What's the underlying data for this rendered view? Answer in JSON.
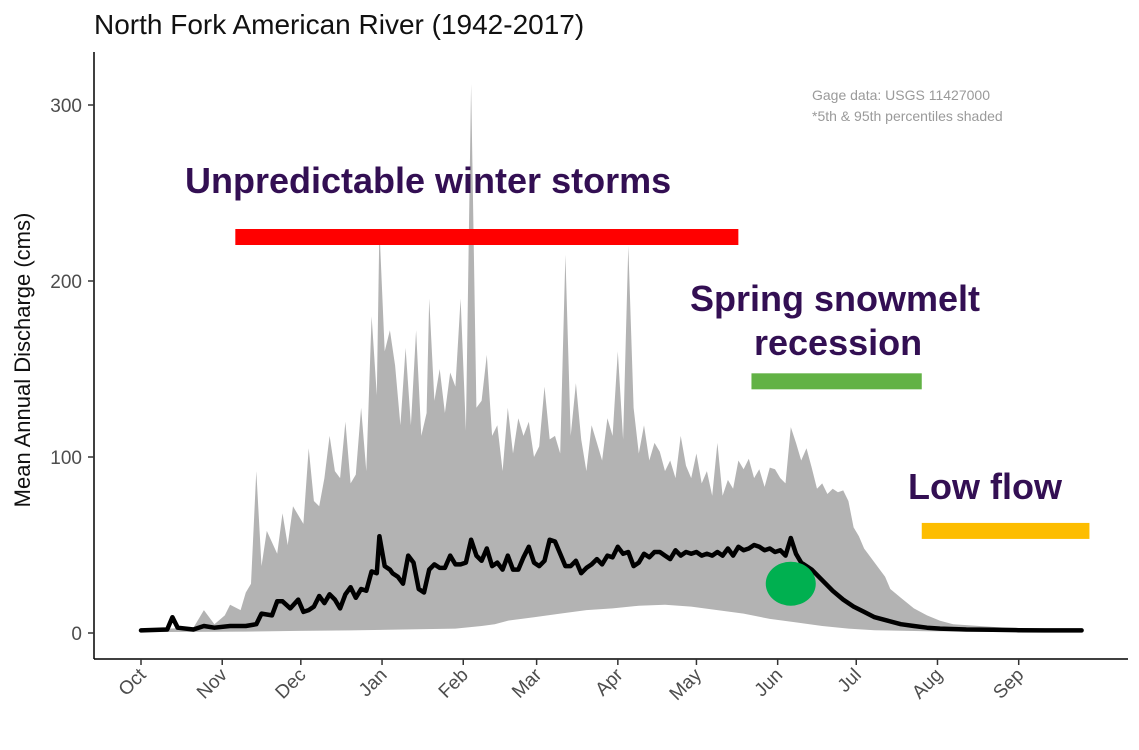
{
  "chart_data": {
    "type": "line",
    "title": "North Fork American River (1942-2017)",
    "ylabel": "Mean Annual Discharge (cms)",
    "xlabel": "",
    "ylim": [
      0,
      330
    ],
    "yticks": [
      0,
      100,
      200,
      300
    ],
    "x_unit": "day of water year (Oct 1 = 0)",
    "xticks": [
      {
        "label": "Oct",
        "day": 0
      },
      {
        "label": "Nov",
        "day": 31
      },
      {
        "label": "Dec",
        "day": 61
      },
      {
        "label": "Jan",
        "day": 92
      },
      {
        "label": "Feb",
        "day": 123
      },
      {
        "label": "Mar",
        "day": 151
      },
      {
        "label": "Apr",
        "day": 182
      },
      {
        "label": "May",
        "day": 212
      },
      {
        "label": "Jun",
        "day": 243
      },
      {
        "label": "Jul",
        "day": 273
      },
      {
        "label": "Aug",
        "day": 304
      },
      {
        "label": "Sep",
        "day": 335
      }
    ],
    "series": [
      {
        "role": "mean",
        "color": "#000000",
        "points": [
          [
            0,
            1.5
          ],
          [
            10,
            2
          ],
          [
            12,
            9
          ],
          [
            14,
            3
          ],
          [
            20,
            2
          ],
          [
            24,
            4
          ],
          [
            28,
            3
          ],
          [
            34,
            4
          ],
          [
            40,
            4
          ],
          [
            44,
            5
          ],
          [
            46,
            11
          ],
          [
            50,
            10
          ],
          [
            52,
            18
          ],
          [
            54,
            18
          ],
          [
            57,
            14
          ],
          [
            60,
            19
          ],
          [
            62,
            12
          ],
          [
            64,
            13
          ],
          [
            66,
            15
          ],
          [
            68,
            21
          ],
          [
            70,
            17
          ],
          [
            72,
            22
          ],
          [
            74,
            19
          ],
          [
            76,
            14
          ],
          [
            78,
            22
          ],
          [
            80,
            26
          ],
          [
            82,
            20
          ],
          [
            84,
            25
          ],
          [
            86,
            24
          ],
          [
            88,
            35
          ],
          [
            90,
            34
          ],
          [
            91,
            55
          ],
          [
            93,
            38
          ],
          [
            95,
            36
          ],
          [
            96,
            34
          ],
          [
            98,
            32
          ],
          [
            100,
            28
          ],
          [
            102,
            44
          ],
          [
            104,
            40
          ],
          [
            106,
            25
          ],
          [
            108,
            23
          ],
          [
            110,
            36
          ],
          [
            112,
            39
          ],
          [
            114,
            37
          ],
          [
            116,
            37
          ],
          [
            118,
            44
          ],
          [
            120,
            39
          ],
          [
            122,
            39
          ],
          [
            124,
            40
          ],
          [
            126,
            53
          ],
          [
            128,
            44
          ],
          [
            130,
            41
          ],
          [
            132,
            48
          ],
          [
            134,
            38
          ],
          [
            136,
            40
          ],
          [
            138,
            36
          ],
          [
            140,
            44
          ],
          [
            142,
            36
          ],
          [
            144,
            36
          ],
          [
            146,
            43
          ],
          [
            148,
            49
          ],
          [
            150,
            40
          ],
          [
            152,
            38
          ],
          [
            154,
            41
          ],
          [
            156,
            53
          ],
          [
            158,
            52
          ],
          [
            160,
            45
          ],
          [
            162,
            38
          ],
          [
            164,
            38
          ],
          [
            166,
            41
          ],
          [
            168,
            34
          ],
          [
            170,
            37
          ],
          [
            172,
            39
          ],
          [
            174,
            42
          ],
          [
            176,
            39
          ],
          [
            178,
            44
          ],
          [
            180,
            43
          ],
          [
            182,
            49
          ],
          [
            184,
            45
          ],
          [
            186,
            46
          ],
          [
            188,
            38
          ],
          [
            190,
            40
          ],
          [
            192,
            45
          ],
          [
            194,
            43
          ],
          [
            196,
            46
          ],
          [
            198,
            46
          ],
          [
            200,
            44
          ],
          [
            202,
            42
          ],
          [
            204,
            47
          ],
          [
            206,
            44
          ],
          [
            208,
            46
          ],
          [
            210,
            45
          ],
          [
            212,
            46
          ],
          [
            214,
            44
          ],
          [
            216,
            45
          ],
          [
            218,
            44
          ],
          [
            220,
            46
          ],
          [
            222,
            44
          ],
          [
            224,
            48
          ],
          [
            226,
            44
          ],
          [
            228,
            49
          ],
          [
            230,
            47
          ],
          [
            232,
            48
          ],
          [
            234,
            50
          ],
          [
            236,
            49
          ],
          [
            238,
            47
          ],
          [
            240,
            48
          ],
          [
            242,
            46
          ],
          [
            244,
            47
          ],
          [
            246,
            44
          ],
          [
            248,
            54
          ],
          [
            250,
            45
          ],
          [
            252,
            40
          ],
          [
            256,
            36
          ],
          [
            260,
            30
          ],
          [
            264,
            24
          ],
          [
            268,
            19
          ],
          [
            272,
            15
          ],
          [
            276,
            12
          ],
          [
            280,
            9
          ],
          [
            285,
            7
          ],
          [
            290,
            5
          ],
          [
            295,
            4
          ],
          [
            300,
            3
          ],
          [
            305,
            2.5
          ],
          [
            315,
            2
          ],
          [
            325,
            1.8
          ],
          [
            335,
            1.6
          ],
          [
            345,
            1.5
          ],
          [
            356,
            1.5
          ],
          [
            359,
            1.5
          ]
        ]
      },
      {
        "role": "95th percentile",
        "color": "#b3b3b3",
        "points": [
          [
            0,
            2
          ],
          [
            20,
            3
          ],
          [
            24,
            13
          ],
          [
            28,
            5
          ],
          [
            32,
            10
          ],
          [
            34,
            16
          ],
          [
            38,
            13
          ],
          [
            40,
            23
          ],
          [
            42,
            28
          ],
          [
            44,
            92
          ],
          [
            46,
            38
          ],
          [
            48,
            58
          ],
          [
            52,
            45
          ],
          [
            54,
            68
          ],
          [
            56,
            50
          ],
          [
            58,
            72
          ],
          [
            62,
            62
          ],
          [
            64,
            105
          ],
          [
            66,
            75
          ],
          [
            68,
            72
          ],
          [
            70,
            88
          ],
          [
            72,
            112
          ],
          [
            74,
            92
          ],
          [
            76,
            88
          ],
          [
            78,
            120
          ],
          [
            80,
            85
          ],
          [
            82,
            90
          ],
          [
            84,
            128
          ],
          [
            86,
            92
          ],
          [
            88,
            180
          ],
          [
            90,
            135
          ],
          [
            91,
            230
          ],
          [
            93,
            160
          ],
          [
            95,
            172
          ],
          [
            97,
            152
          ],
          [
            99,
            118
          ],
          [
            101,
            162
          ],
          [
            103,
            118
          ],
          [
            105,
            172
          ],
          [
            107,
            112
          ],
          [
            109,
            125
          ],
          [
            110,
            190
          ],
          [
            112,
            132
          ],
          [
            114,
            150
          ],
          [
            116,
            125
          ],
          [
            118,
            148
          ],
          [
            120,
            140
          ],
          [
            122,
            190
          ],
          [
            124,
            115
          ],
          [
            126,
            312
          ],
          [
            128,
            128
          ],
          [
            130,
            132
          ],
          [
            132,
            158
          ],
          [
            134,
            112
          ],
          [
            136,
            118
          ],
          [
            138,
            92
          ],
          [
            140,
            128
          ],
          [
            142,
            102
          ],
          [
            144,
            122
          ],
          [
            146,
            112
          ],
          [
            148,
            120
          ],
          [
            150,
            100
          ],
          [
            152,
            106
          ],
          [
            154,
            140
          ],
          [
            156,
            110
          ],
          [
            158,
            112
          ],
          [
            160,
            102
          ],
          [
            162,
            215
          ],
          [
            164,
            112
          ],
          [
            166,
            142
          ],
          [
            168,
            110
          ],
          [
            170,
            92
          ],
          [
            172,
            118
          ],
          [
            174,
            108
          ],
          [
            176,
            98
          ],
          [
            178,
            122
          ],
          [
            180,
            112
          ],
          [
            182,
            160
          ],
          [
            184,
            110
          ],
          [
            186,
            220
          ],
          [
            188,
            128
          ],
          [
            190,
            102
          ],
          [
            192,
            118
          ],
          [
            194,
            98
          ],
          [
            196,
            108
          ],
          [
            198,
            103
          ],
          [
            200,
            92
          ],
          [
            202,
            98
          ],
          [
            204,
            88
          ],
          [
            206,
            112
          ],
          [
            208,
            95
          ],
          [
            210,
            88
          ],
          [
            212,
            102
          ],
          [
            214,
            85
          ],
          [
            216,
            92
          ],
          [
            218,
            78
          ],
          [
            220,
            108
          ],
          [
            222,
            78
          ],
          [
            224,
            87
          ],
          [
            226,
            82
          ],
          [
            228,
            98
          ],
          [
            230,
            93
          ],
          [
            232,
            99
          ],
          [
            234,
            88
          ],
          [
            236,
            93
          ],
          [
            238,
            83
          ],
          [
            240,
            94
          ],
          [
            242,
            93
          ],
          [
            244,
            88
          ],
          [
            246,
            85
          ],
          [
            248,
            117
          ],
          [
            250,
            108
          ],
          [
            252,
            98
          ],
          [
            254,
            105
          ],
          [
            256,
            94
          ],
          [
            258,
            82
          ],
          [
            260,
            85
          ],
          [
            262,
            79
          ],
          [
            264,
            82
          ],
          [
            266,
            80
          ],
          [
            268,
            81
          ],
          [
            270,
            75
          ],
          [
            272,
            60
          ],
          [
            274,
            55
          ],
          [
            276,
            48
          ],
          [
            280,
            40
          ],
          [
            284,
            32
          ],
          [
            286,
            25
          ],
          [
            290,
            20
          ],
          [
            295,
            14
          ],
          [
            300,
            10
          ],
          [
            305,
            7
          ],
          [
            310,
            5
          ],
          [
            320,
            4
          ],
          [
            330,
            3
          ],
          [
            345,
            2.5
          ],
          [
            359,
            2
          ]
        ]
      },
      {
        "role": "5th percentile",
        "color": "#b3b3b3",
        "points": [
          [
            0,
            0.5
          ],
          [
            40,
            0.8
          ],
          [
            60,
            1.2
          ],
          [
            80,
            1.5
          ],
          [
            100,
            2
          ],
          [
            120,
            2.5
          ],
          [
            130,
            4
          ],
          [
            135,
            5
          ],
          [
            140,
            7
          ],
          [
            150,
            9
          ],
          [
            160,
            11
          ],
          [
            170,
            13
          ],
          [
            180,
            14
          ],
          [
            190,
            15.5
          ],
          [
            200,
            16
          ],
          [
            210,
            15
          ],
          [
            220,
            13
          ],
          [
            230,
            11
          ],
          [
            240,
            8
          ],
          [
            250,
            6
          ],
          [
            260,
            4
          ],
          [
            270,
            2.5
          ],
          [
            280,
            1.6
          ],
          [
            300,
            1
          ],
          [
            330,
            0.8
          ],
          [
            359,
            0.7
          ]
        ]
      }
    ],
    "annotations": [
      {
        "text": "Unpredictable winter storms",
        "bar_color": "#ff0000",
        "bar_start_day": 36,
        "bar_end_day": 228,
        "bar_y": 225
      },
      {
        "line1": "Spring snowmelt",
        "line2": "recession",
        "bar_color": "#62b245",
        "bar_start_day": 233,
        "bar_end_day": 298,
        "bar_y": 143
      },
      {
        "text": "Low flow",
        "bar_color": "#fdbd00",
        "bar_start_day": 298,
        "bar_end_day": 362,
        "bar_y": 58
      }
    ],
    "marker": {
      "color": "#00b050",
      "day": 248,
      "value": 28
    },
    "notes": [
      "Gage data: USGS 11427000",
      "*5th & 95th percentiles shaded"
    ],
    "grid": false,
    "legend": "none"
  }
}
